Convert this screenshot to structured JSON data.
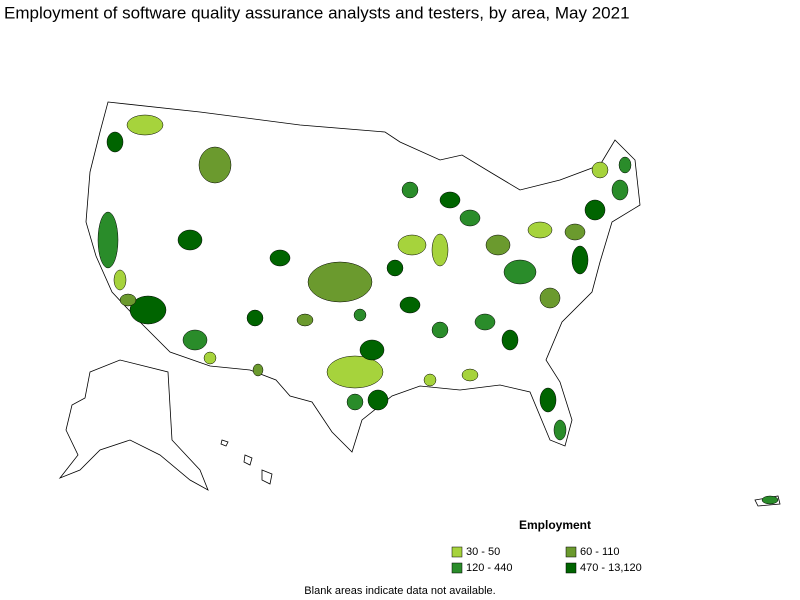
{
  "title": "Employment of software quality assurance analysts and testers, by area, May 2021",
  "legend": {
    "title": "Employment",
    "items": [
      {
        "label": "30 - 50",
        "color": "#a6d33c"
      },
      {
        "label": "60 - 110",
        "color": "#6b9a2e"
      },
      {
        "label": "120 - 440",
        "color": "#2a8c2a"
      },
      {
        "label": "470 - 13,120",
        "color": "#006400"
      }
    ]
  },
  "note": "Blank areas indicate data not available."
}
